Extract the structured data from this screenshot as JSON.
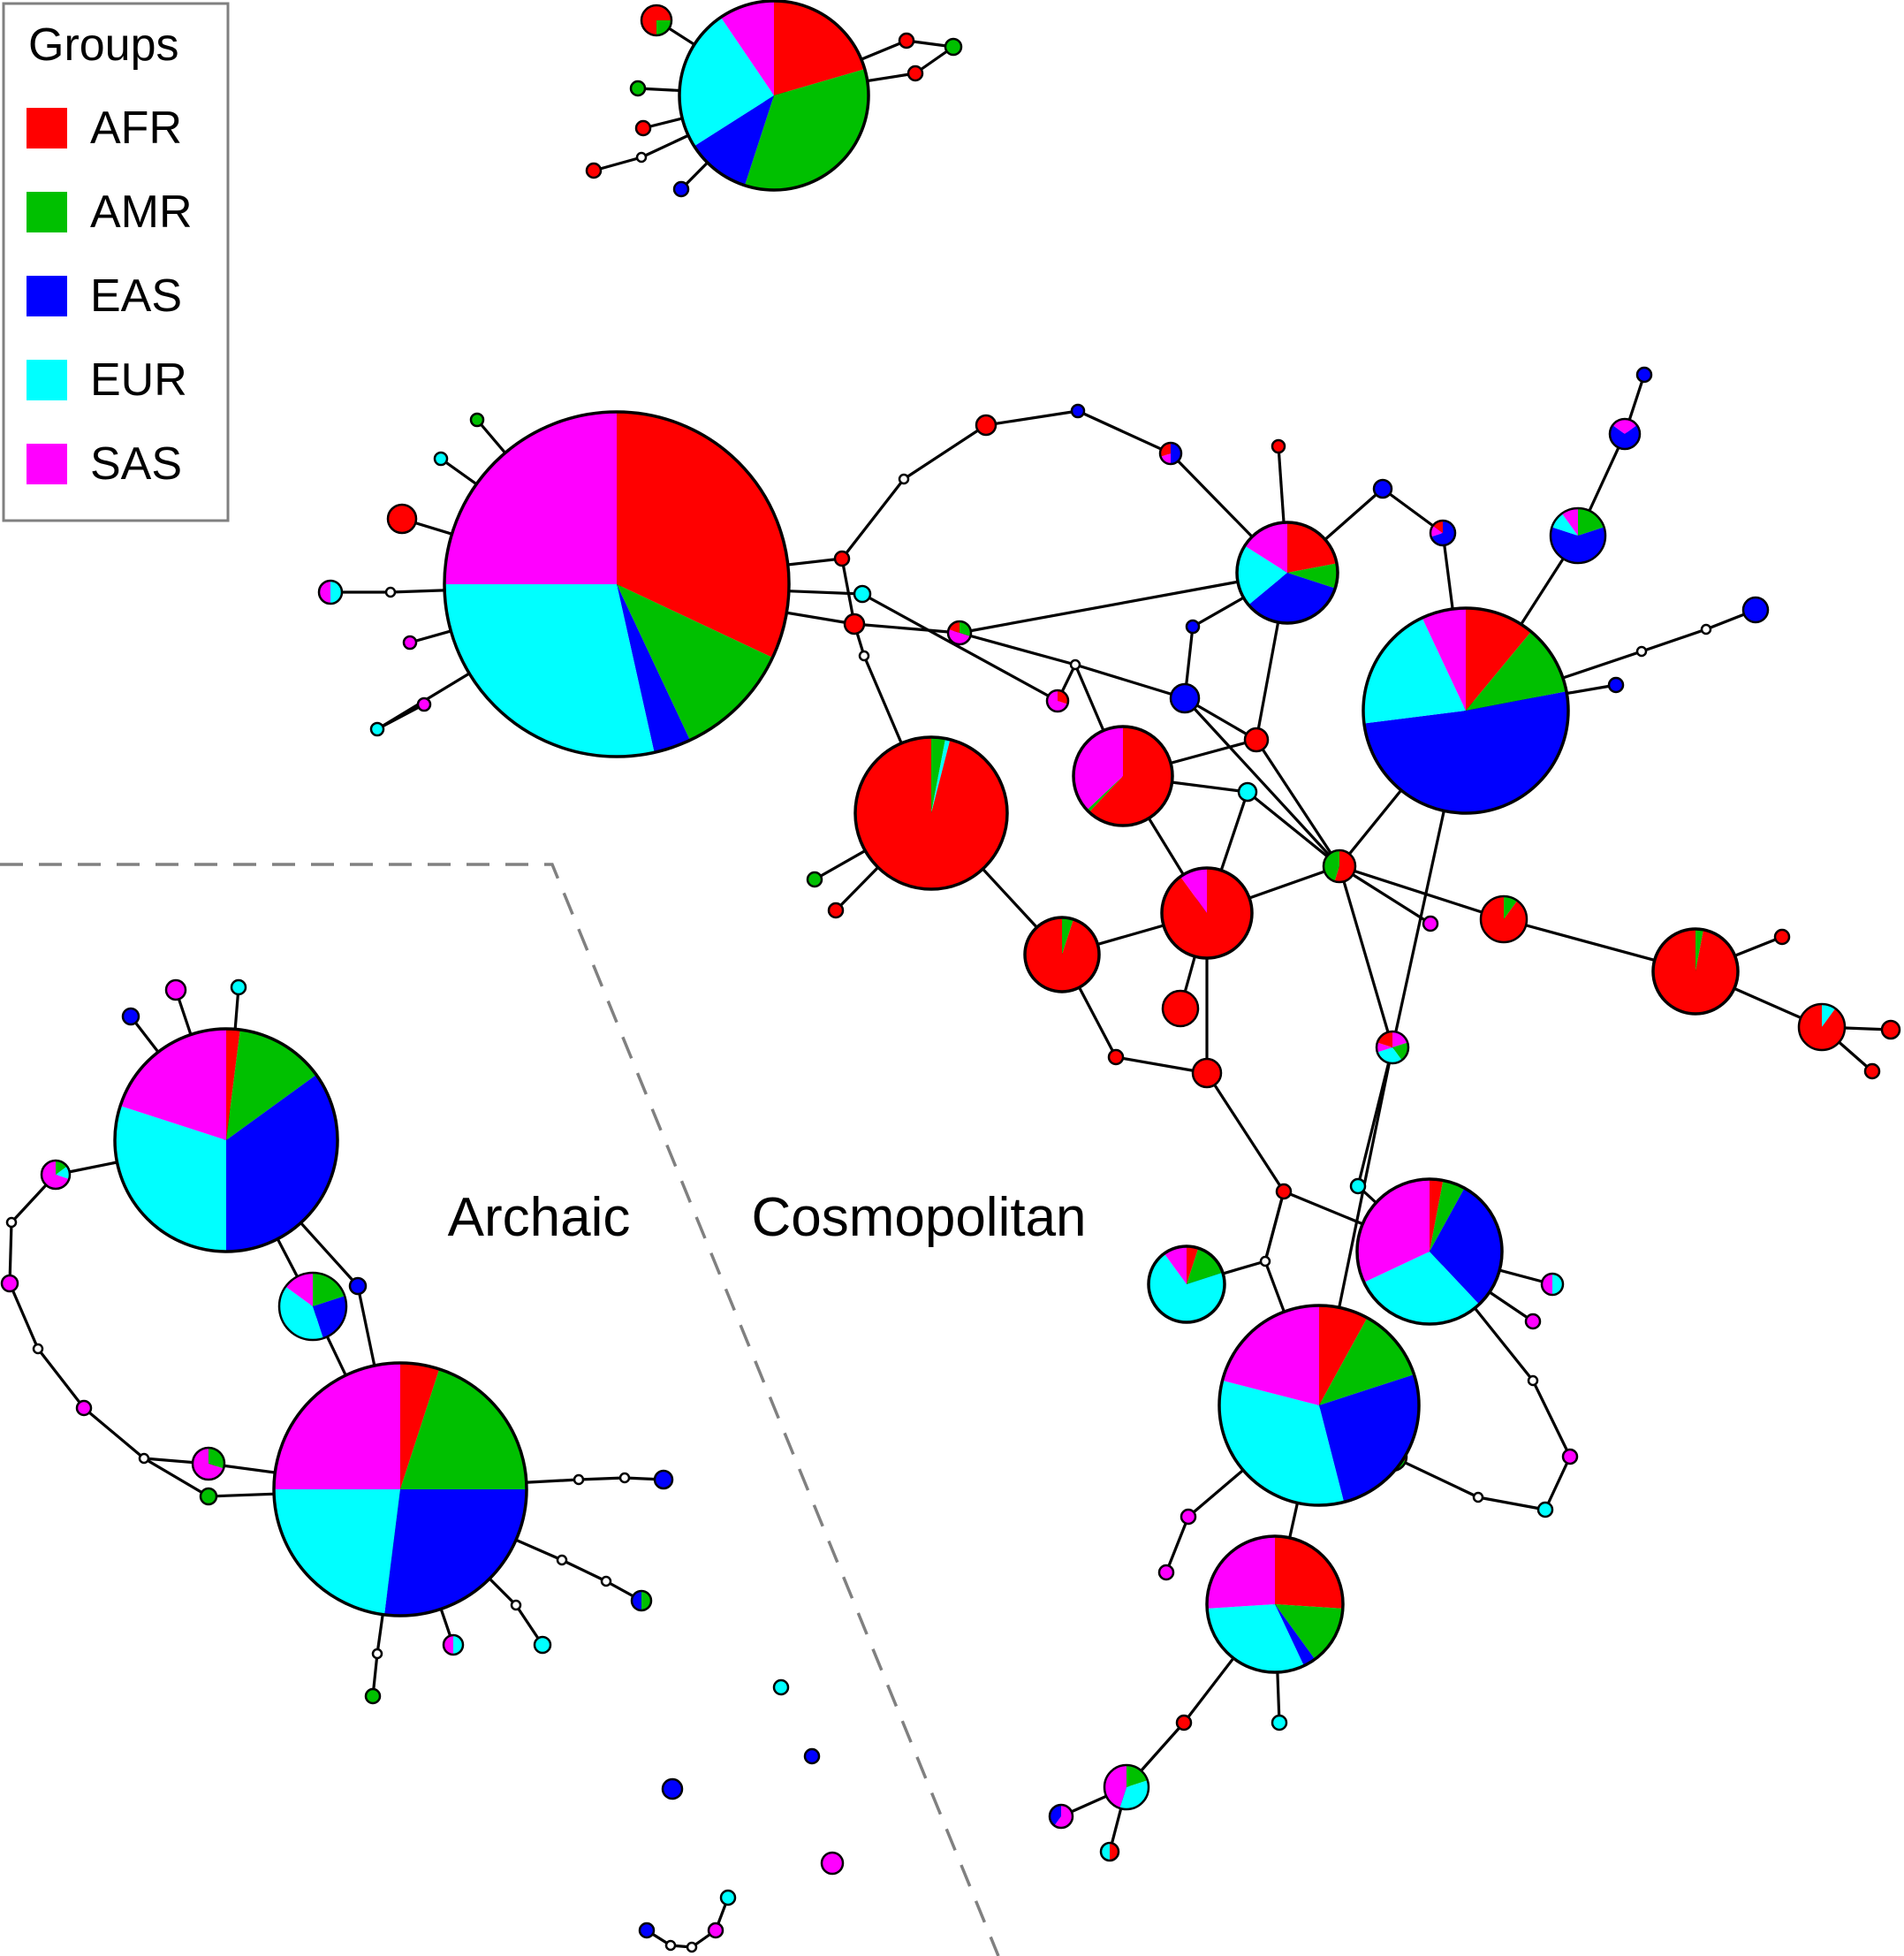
{
  "legend": {
    "title": "Groups",
    "items": [
      {
        "label": "AFR",
        "color": "#ff0000"
      },
      {
        "label": "AMR",
        "color": "#00c000"
      },
      {
        "label": "EAS",
        "color": "#0000ff"
      },
      {
        "label": "EUR",
        "color": "#00ffff"
      },
      {
        "label": "SAS",
        "color": "#ff00ff"
      }
    ]
  },
  "regions": {
    "archaic": "Archaic",
    "cosmopolitan": "Cosmopolitan"
  },
  "colors": {
    "edge": "#000000",
    "divider": "#808080",
    "node_outline": "#000000",
    "intermediate_fill": "#ffffff"
  }
}
